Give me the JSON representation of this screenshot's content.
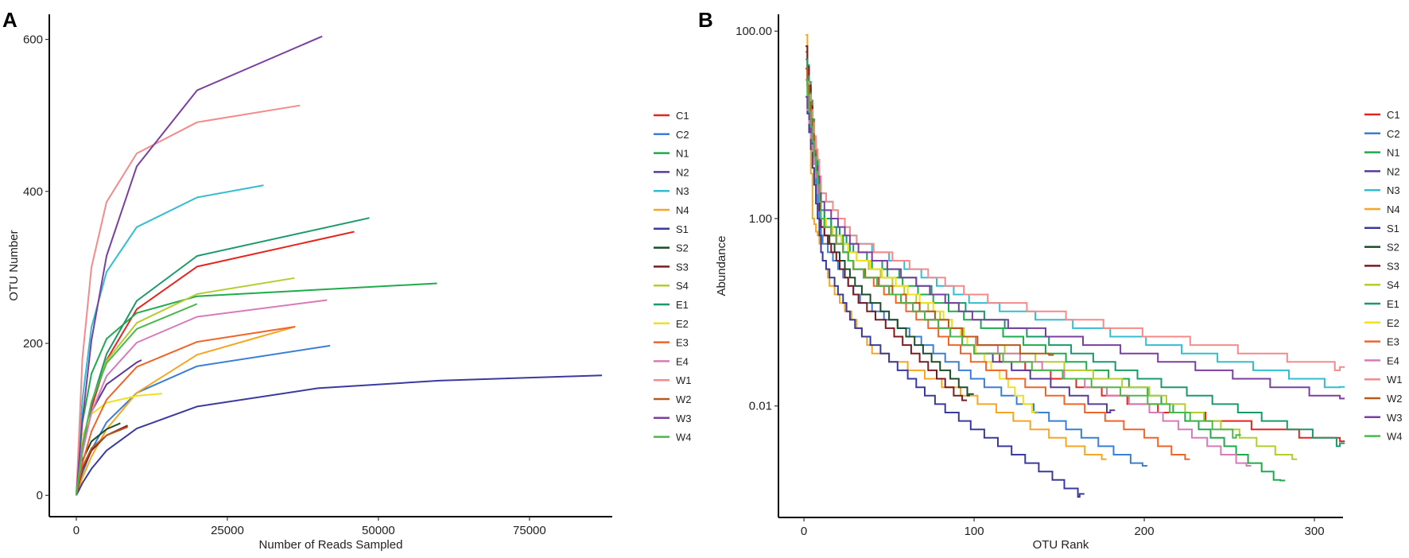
{
  "chart_data": [
    {
      "panel_label": "A",
      "type": "line",
      "xlabel": "Number of Reads Sampled",
      "ylabel": "OTU Number",
      "xlim": [
        -4470,
        88700
      ],
      "ylim": [
        -28,
        633
      ],
      "xticks": [
        0,
        25000,
        50000,
        75000
      ],
      "xtick_labels": [
        "0",
        "25000",
        "50000",
        "75000"
      ],
      "yticks": [
        0,
        200,
        400,
        600
      ],
      "ytick_labels": [
        "0",
        "200",
        "400",
        "600"
      ],
      "grid": false,
      "legend_position": "right",
      "series": [
        {
          "name": "C1",
          "color": "#e5261f",
          "x": [
            0,
            1000,
            2500,
            5000,
            10000,
            20000,
            46000
          ],
          "y": [
            0,
            56,
            115,
            178,
            245,
            301,
            347
          ]
        },
        {
          "name": "C2",
          "color": "#3a7fd5",
          "x": [
            0,
            1000,
            2500,
            5000,
            10000,
            20000,
            42000
          ],
          "y": [
            0,
            29,
            60,
            96,
            135,
            170,
            197
          ]
        },
        {
          "name": "N1",
          "color": "#1faa4b",
          "x": [
            0,
            1000,
            2500,
            5000,
            10000,
            20000,
            59700
          ],
          "y": [
            0,
            96,
            160,
            206,
            240,
            262,
            279
          ]
        },
        {
          "name": "N2",
          "color": "#5a3a9a",
          "x": [
            0,
            1000,
            2500,
            5000,
            10000,
            10800
          ],
          "y": [
            0,
            63,
            110,
            146,
            175,
            178
          ]
        },
        {
          "name": "N3",
          "color": "#33bdd0",
          "x": [
            0,
            1000,
            2500,
            5000,
            10000,
            20000,
            31000
          ],
          "y": [
            0,
            126,
            221,
            294,
            353,
            392,
            408
          ]
        },
        {
          "name": "N4",
          "color": "#f5a623",
          "x": [
            0,
            1000,
            2500,
            5000,
            10000,
            20000,
            36200
          ],
          "y": [
            0,
            23,
            51,
            87,
            135,
            185,
            222
          ]
        },
        {
          "name": "S1",
          "color": "#3a3a9e",
          "x": [
            0,
            1000,
            2500,
            5000,
            10000,
            20000,
            40000,
            60000,
            87000
          ],
          "y": [
            0,
            16,
            35,
            59,
            88,
            117,
            141,
            151,
            158
          ]
        },
        {
          "name": "S2",
          "color": "#1a4d2a",
          "x": [
            0,
            1000,
            2500,
            5000,
            7300
          ],
          "y": [
            0,
            46,
            71,
            87,
            95
          ]
        },
        {
          "name": "S3",
          "color": "#7a1b22",
          "x": [
            0,
            1000,
            2500,
            5000,
            8500
          ],
          "y": [
            0,
            34,
            59,
            79,
            92
          ]
        },
        {
          "name": "S4",
          "color": "#b5cc2e",
          "x": [
            0,
            1000,
            2500,
            5000,
            10000,
            20000,
            36100
          ],
          "y": [
            0,
            64,
            122,
            177,
            227,
            265,
            286
          ]
        },
        {
          "name": "E1",
          "color": "#1a9a6a",
          "x": [
            0,
            1000,
            2500,
            5000,
            10000,
            20000,
            48500
          ],
          "y": [
            0,
            59,
            121,
            186,
            256,
            315,
            365
          ]
        },
        {
          "name": "E2",
          "color": "#f0e020",
          "x": [
            0,
            1000,
            2500,
            5000,
            10000,
            14200
          ],
          "y": [
            0,
            78,
            107,
            122,
            131,
            134
          ]
        },
        {
          "name": "E3",
          "color": "#f06428",
          "x": [
            0,
            1000,
            2500,
            5000,
            10000,
            20000,
            36200
          ],
          "y": [
            0,
            42,
            84,
            126,
            169,
            202,
            222
          ]
        },
        {
          "name": "E4",
          "color": "#d87ab8",
          "x": [
            0,
            1000,
            2500,
            5000,
            10000,
            20000,
            41500
          ],
          "y": [
            0,
            56,
            109,
            157,
            201,
            235,
            257
          ]
        },
        {
          "name": "W1",
          "color": "#f48a8a",
          "x": [
            0,
            1000,
            2500,
            5000,
            10000,
            20000,
            37000
          ],
          "y": [
            0,
            180,
            300,
            386,
            450,
            491,
            513
          ]
        },
        {
          "name": "W2",
          "color": "#b85a1a",
          "x": [
            0,
            1000,
            2500,
            5000,
            8500
          ],
          "y": [
            0,
            37,
            62,
            79,
            90
          ]
        },
        {
          "name": "W3",
          "color": "#7a3fa0",
          "x": [
            0,
            1000,
            2500,
            5000,
            10000,
            20000,
            40700
          ],
          "y": [
            0,
            99,
            204,
            315,
            433,
            533,
            604
          ]
        },
        {
          "name": "W4",
          "color": "#4cb84c",
          "x": [
            0,
            1000,
            2500,
            5000,
            10000,
            20000
          ],
          "y": [
            0,
            66,
            123,
            174,
            219,
            252
          ]
        }
      ]
    },
    {
      "panel_label": "B",
      "type": "line",
      "xlabel": "OTU Rank",
      "ylabel": "Abundance",
      "yscale": "log10",
      "xlim": [
        -15,
        316.8
      ],
      "ylim_log10": [
        -3.19,
        2.18
      ],
      "xticks": [
        0,
        100,
        200,
        300
      ],
      "xtick_labels": [
        "0",
        "100",
        "200",
        "300"
      ],
      "yticks": [
        100,
        1,
        0.01
      ],
      "ytick_labels": [
        "100.00",
        "1.00",
        "0.01"
      ],
      "grid": false,
      "legend_position": "right",
      "series": [
        {
          "name": "C1",
          "color": "#e5261f",
          "x": [
            1,
            10,
            30,
            100,
            200,
            315
          ],
          "y": [
            60,
            1,
            0.3,
            0.04,
            0.01,
            0.0042
          ]
        },
        {
          "name": "C2",
          "color": "#3a7fd5",
          "x": [
            1,
            10,
            30,
            100,
            199
          ],
          "y": [
            40,
            0.6,
            0.15,
            0.02,
            0.0023
          ]
        },
        {
          "name": "N1",
          "color": "#1faa4b",
          "x": [
            1,
            10,
            30,
            100,
            200,
            280
          ],
          "y": [
            70,
            1.2,
            0.4,
            0.08,
            0.015,
            0.0016
          ]
        },
        {
          "name": "N2",
          "color": "#5a3a9a",
          "x": [
            1,
            10,
            30,
            100,
            180
          ],
          "y": [
            40,
            1,
            0.3,
            0.04,
            0.009
          ]
        },
        {
          "name": "N3",
          "color": "#33bdd0",
          "x": [
            1,
            10,
            30,
            100,
            200,
            315
          ],
          "y": [
            30,
            2,
            0.6,
            0.13,
            0.05,
            0.016
          ]
        },
        {
          "name": "N4",
          "color": "#f5a623",
          "x": [
            1,
            5,
            15,
            40,
            100,
            175
          ],
          "y": [
            90,
            1,
            0.2,
            0.04,
            0.012,
            0.0027
          ]
        },
        {
          "name": "S1",
          "color": "#3a3a9e",
          "x": [
            1,
            10,
            30,
            80,
            162
          ],
          "y": [
            20,
            0.4,
            0.07,
            0.01,
            0.00115
          ]
        },
        {
          "name": "S2",
          "color": "#1a4d2a",
          "x": [
            1,
            10,
            30,
            97
          ],
          "y": [
            40,
            0.8,
            0.2,
            0.0134
          ]
        },
        {
          "name": "S3",
          "color": "#7a1b22",
          "x": [
            1,
            10,
            30,
            93
          ],
          "y": [
            70,
            0.8,
            0.15,
            0.0115
          ]
        },
        {
          "name": "S4",
          "color": "#b5cc2e",
          "x": [
            1,
            10,
            30,
            100,
            200,
            287
          ],
          "y": [
            30,
            1,
            0.4,
            0.05,
            0.015,
            0.0027
          ]
        },
        {
          "name": "E1",
          "color": "#1a9a6a",
          "x": [
            1,
            10,
            30,
            100,
            200,
            250,
            315
          ],
          "y": [
            50,
            1.2,
            0.45,
            0.1,
            0.02,
            0.01,
            0.004
          ]
        },
        {
          "name": "E2",
          "color": "#f0e020",
          "x": [
            1,
            10,
            30,
            80,
            135
          ],
          "y": [
            20,
            1,
            0.4,
            0.1,
            0.0087
          ]
        },
        {
          "name": "E3",
          "color": "#f06428",
          "x": [
            1,
            10,
            30,
            100,
            200,
            224
          ],
          "y": [
            40,
            1,
            0.3,
            0.03,
            0.005,
            0.0027
          ]
        },
        {
          "name": "E4",
          "color": "#d87ab8",
          "x": [
            1,
            10,
            30,
            100,
            200,
            260
          ],
          "y": [
            20,
            1,
            0.3,
            0.05,
            0.01,
            0.0023
          ]
        },
        {
          "name": "W1",
          "color": "#f48a8a",
          "x": [
            1,
            10,
            30,
            100,
            200,
            315
          ],
          "y": [
            40,
            2,
            0.6,
            0.15,
            0.06,
            0.026
          ]
        },
        {
          "name": "W2",
          "color": "#b85a1a",
          "x": [
            1,
            10,
            30,
            100,
            144
          ],
          "y": [
            40,
            1,
            0.3,
            0.05,
            0.035
          ]
        },
        {
          "name": "W3",
          "color": "#7a3fa0",
          "x": [
            1,
            10,
            30,
            100,
            200,
            315
          ],
          "y": [
            20,
            1.5,
            0.5,
            0.09,
            0.035,
            0.012
          ]
        },
        {
          "name": "W4",
          "color": "#4cb84c",
          "x": [
            1,
            10,
            30,
            100,
            200,
            254
          ],
          "y": [
            30,
            1,
            0.3,
            0.04,
            0.012,
            0.0049
          ]
        }
      ]
    }
  ]
}
